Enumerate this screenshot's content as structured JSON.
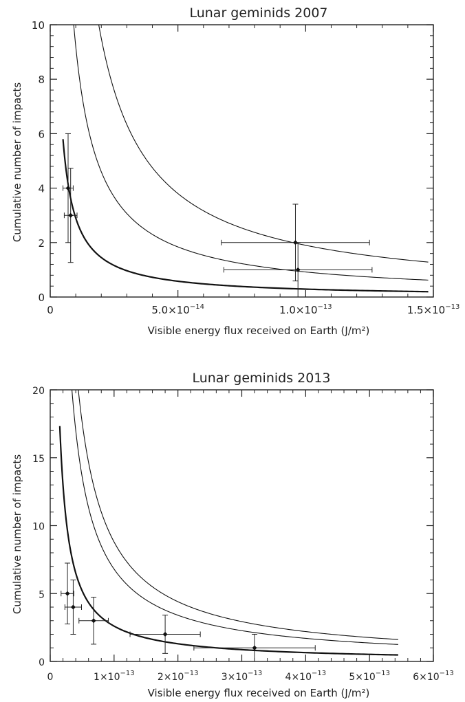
{
  "chart_data": [
    {
      "type": "scatter",
      "title": "Lunar geminids 2007",
      "xlabel": "Visible energy flux received on Earth (J/m²)",
      "ylabel": "Cumulative number of impacts",
      "xlim": [
        0,
        1.5e-13
      ],
      "ylim": [
        0,
        10
      ],
      "grid": false,
      "x_ticks": [
        {
          "value": 0,
          "mant": "0",
          "exp": ""
        },
        {
          "value": 5e-14,
          "mant": "5.0×10",
          "exp": "−14"
        },
        {
          "value": 1e-13,
          "mant": "1.0×10",
          "exp": "−13"
        },
        {
          "value": 1.5e-13,
          "mant": "1.5×10",
          "exp": "−13"
        }
      ],
      "y_ticks": [
        {
          "value": 0,
          "label": "0"
        },
        {
          "value": 2,
          "label": "2"
        },
        {
          "value": 4,
          "label": "4"
        },
        {
          "value": 6,
          "label": "6"
        },
        {
          "value": 8,
          "label": "8"
        },
        {
          "value": 10,
          "label": "10"
        }
      ],
      "points": [
        {
          "x": 7e-15,
          "y": 4,
          "xerr": 2e-15,
          "yerr": 2.0
        },
        {
          "x": 8e-15,
          "y": 3,
          "xerr": 2.5e-15,
          "yerr": 1.73
        },
        {
          "x": 9.6e-14,
          "y": 2,
          "xerr": 2.9e-14,
          "yerr": 1.41
        },
        {
          "x": 9.7e-14,
          "y": 1,
          "xerr": 2.9e-14,
          "yerr": 1.0
        }
      ],
      "curves": [
        {
          "k": 2.9e-14,
          "x_range": [
            5e-15,
            1.48e-13
          ],
          "width": 2.2
        },
        {
          "k": 9.2e-14,
          "x_range": [
            9.2e-15,
            1.48e-13
          ],
          "width": 1.1
        },
        {
          "k": 1.9e-13,
          "x_range": [
            1.9e-14,
            1.48e-13
          ],
          "width": 1.1
        }
      ]
    },
    {
      "type": "scatter",
      "title": "Lunar geminids 2013",
      "xlabel": "Visible energy flux received on Earth (J/m²)",
      "ylabel": "Cumulative number of impacts",
      "xlim": [
        0,
        6e-13
      ],
      "ylim": [
        0,
        20
      ],
      "grid": false,
      "x_ticks": [
        {
          "value": 0,
          "mant": "0",
          "exp": ""
        },
        {
          "value": 1e-13,
          "mant": "1×10",
          "exp": "−13"
        },
        {
          "value": 2e-13,
          "mant": "2×10",
          "exp": "−13"
        },
        {
          "value": 3e-13,
          "mant": "3×10",
          "exp": "−13"
        },
        {
          "value": 4e-13,
          "mant": "4×10",
          "exp": "−13"
        },
        {
          "value": 5e-13,
          "mant": "5×10",
          "exp": "−13"
        },
        {
          "value": 6e-13,
          "mant": "6×10",
          "exp": "−13"
        }
      ],
      "y_ticks": [
        {
          "value": 0,
          "label": "0"
        },
        {
          "value": 5,
          "label": "5"
        },
        {
          "value": 10,
          "label": "10"
        },
        {
          "value": 15,
          "label": "15"
        },
        {
          "value": 20,
          "label": "20"
        }
      ],
      "points": [
        {
          "x": 2.7e-14,
          "y": 5,
          "xerr": 1e-14,
          "yerr": 2.24
        },
        {
          "x": 3.6e-14,
          "y": 4,
          "xerr": 1.3e-14,
          "yerr": 2.0
        },
        {
          "x": 6.8e-14,
          "y": 3,
          "xerr": 2.3e-14,
          "yerr": 1.73
        },
        {
          "x": 1.8e-13,
          "y": 2,
          "xerr": 5.5e-14,
          "yerr": 1.41
        },
        {
          "x": 3.2e-13,
          "y": 1,
          "xerr": 9.5e-14,
          "yerr": 1.0
        }
      ],
      "curves": [
        {
          "k": 2.6e-13,
          "x_range": [
            1.5e-14,
            5.45e-13
          ],
          "width": 2.2
        },
        {
          "k": 6.8e-13,
          "x_range": [
            3.4e-14,
            5.45e-13
          ],
          "width": 1.1
        },
        {
          "k": 8.8e-13,
          "x_range": [
            4.4e-14,
            5.45e-13
          ],
          "width": 1.1
        }
      ]
    }
  ]
}
